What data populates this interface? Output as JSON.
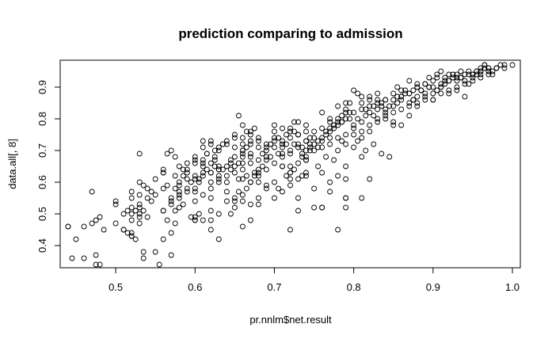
{
  "chart_data": {
    "type": "scatter",
    "title": "prediction comparing to admission",
    "xlabel": "pr.nnlm$net.result",
    "ylabel": "data.all[, 8]",
    "xlim": [
      0.43,
      1.01
    ],
    "ylim": [
      0.33,
      0.985
    ],
    "xticks": [
      "0.5",
      "0.6",
      "0.7",
      "0.8",
      "0.9",
      "1.0"
    ],
    "yticks": [
      "0.4",
      "0.5",
      "0.6",
      "0.7",
      "0.8",
      "0.9"
    ],
    "grid": false,
    "legend": "none",
    "marker": "open-circle",
    "x": [
      0.44,
      0.45,
      0.46,
      0.44,
      0.47,
      0.48,
      0.47,
      0.46,
      0.485,
      0.475,
      0.475,
      0.48,
      0.445,
      0.475,
      0.5,
      0.5,
      0.5,
      0.51,
      0.51,
      0.52,
      0.52,
      0.52,
      0.52,
      0.53,
      0.525,
      0.53,
      0.53,
      0.515,
      0.52,
      0.51,
      0.52,
      0.53,
      0.54,
      0.535,
      0.54,
      0.545,
      0.545,
      0.55,
      0.55,
      0.54,
      0.535,
      0.53,
      0.52,
      0.53,
      0.53,
      0.535,
      0.535,
      0.515,
      0.52,
      0.525,
      0.53,
      0.55,
      0.56,
      0.56,
      0.57,
      0.565,
      0.575,
      0.58,
      0.58,
      0.56,
      0.575,
      0.585,
      0.58,
      0.59,
      0.59,
      0.58,
      0.585,
      0.57,
      0.575,
      0.565,
      0.56,
      0.585,
      0.59,
      0.59,
      0.595,
      0.595,
      0.565,
      0.57,
      0.575,
      0.56,
      0.58,
      0.555,
      0.57,
      0.56,
      0.59,
      0.575,
      0.58,
      0.59,
      0.57,
      0.6,
      0.61,
      0.6,
      0.61,
      0.615,
      0.62,
      0.625,
      0.63,
      0.61,
      0.62,
      0.63,
      0.6,
      0.6,
      0.605,
      0.61,
      0.62,
      0.63,
      0.615,
      0.625,
      0.63,
      0.635,
      0.6,
      0.605,
      0.61,
      0.62,
      0.62,
      0.63,
      0.63,
      0.61,
      0.62,
      0.625,
      0.6,
      0.61,
      0.6,
      0.62,
      0.625,
      0.615,
      0.61,
      0.63,
      0.635,
      0.6,
      0.605,
      0.62,
      0.63,
      0.6,
      0.61,
      0.62,
      0.63,
      0.62,
      0.6,
      0.64,
      0.65,
      0.65,
      0.66,
      0.66,
      0.67,
      0.67,
      0.68,
      0.68,
      0.69,
      0.64,
      0.645,
      0.655,
      0.66,
      0.665,
      0.67,
      0.675,
      0.68,
      0.685,
      0.69,
      0.695,
      0.64,
      0.65,
      0.66,
      0.67,
      0.68,
      0.69,
      0.64,
      0.65,
      0.66,
      0.67,
      0.68,
      0.69,
      0.655,
      0.66,
      0.665,
      0.645,
      0.65,
      0.66,
      0.67,
      0.68,
      0.69,
      0.64,
      0.65,
      0.66,
      0.67,
      0.68,
      0.69,
      0.645,
      0.655,
      0.665,
      0.675,
      0.685,
      0.695,
      0.64,
      0.65,
      0.66,
      0.67,
      0.68,
      0.69,
      0.66,
      0.67,
      0.64,
      0.65,
      0.655,
      0.66,
      0.68,
      0.67,
      0.69,
      0.65,
      0.645,
      0.66,
      0.67,
      0.665,
      0.675,
      0.7,
      0.71,
      0.72,
      0.73,
      0.74,
      0.7,
      0.705,
      0.71,
      0.715,
      0.72,
      0.725,
      0.73,
      0.735,
      0.74,
      0.745,
      0.7,
      0.71,
      0.72,
      0.73,
      0.74,
      0.7,
      0.71,
      0.72,
      0.73,
      0.74,
      0.7,
      0.71,
      0.72,
      0.73,
      0.74,
      0.705,
      0.715,
      0.725,
      0.735,
      0.745,
      0.7,
      0.71,
      0.72,
      0.73,
      0.74,
      0.72,
      0.73,
      0.74,
      0.7,
      0.715,
      0.725,
      0.735,
      0.745,
      0.71,
      0.72,
      0.735,
      0.74,
      0.745,
      0.7,
      0.705,
      0.71,
      0.73,
      0.725,
      0.74,
      0.72,
      0.75,
      0.76,
      0.77,
      0.78,
      0.79,
      0.75,
      0.755,
      0.76,
      0.765,
      0.77,
      0.775,
      0.78,
      0.785,
      0.79,
      0.795,
      0.75,
      0.76,
      0.77,
      0.78,
      0.79,
      0.75,
      0.76,
      0.77,
      0.78,
      0.79,
      0.755,
      0.765,
      0.775,
      0.785,
      0.795,
      0.75,
      0.76,
      0.77,
      0.78,
      0.79,
      0.76,
      0.77,
      0.78,
      0.79,
      0.785,
      0.79,
      0.79,
      0.755,
      0.775,
      0.765,
      0.78,
      0.79,
      0.77,
      0.76,
      0.785,
      0.795,
      0.775,
      0.8,
      0.81,
      0.82,
      0.83,
      0.84,
      0.8,
      0.805,
      0.81,
      0.815,
      0.82,
      0.825,
      0.83,
      0.835,
      0.84,
      0.845,
      0.8,
      0.81,
      0.82,
      0.83,
      0.84,
      0.8,
      0.81,
      0.82,
      0.83,
      0.84,
      0.805,
      0.815,
      0.825,
      0.835,
      0.845,
      0.8,
      0.81,
      0.82,
      0.83,
      0.84,
      0.81,
      0.82,
      0.835,
      0.8,
      0.805,
      0.815,
      0.83,
      0.825,
      0.84,
      0.81,
      0.85,
      0.86,
      0.87,
      0.88,
      0.89,
      0.85,
      0.855,
      0.86,
      0.865,
      0.87,
      0.875,
      0.88,
      0.885,
      0.89,
      0.895,
      0.85,
      0.86,
      0.87,
      0.88,
      0.89,
      0.85,
      0.86,
      0.87,
      0.88,
      0.89,
      0.855,
      0.865,
      0.875,
      0.885,
      0.895,
      0.86,
      0.87,
      0.88,
      0.85,
      0.86,
      0.87,
      0.88,
      0.89,
      0.855,
      0.875,
      0.9,
      0.91,
      0.92,
      0.93,
      0.94,
      0.9,
      0.905,
      0.91,
      0.915,
      0.92,
      0.925,
      0.93,
      0.935,
      0.94,
      0.945,
      0.9,
      0.91,
      0.92,
      0.93,
      0.94,
      0.905,
      0.915,
      0.925,
      0.935,
      0.945,
      0.9,
      0.91,
      0.92,
      0.93,
      0.94,
      0.91,
      0.92,
      0.93,
      0.895,
      0.905,
      0.915,
      0.925,
      0.935,
      0.945,
      0.9,
      0.95,
      0.96,
      0.97,
      0.98,
      0.99,
      1.0,
      0.95,
      0.955,
      0.96,
      0.965,
      0.97,
      0.975,
      0.98,
      0.985,
      0.99,
      0.95,
      0.96,
      0.97,
      0.98,
      0.955,
      0.965,
      0.975,
      0.95,
      0.96,
      0.97,
      0.955,
      0.96,
      0.965,
      0.95,
      0.97,
      0.75,
      0.79,
      0.76,
      0.73,
      0.73,
      0.77,
      0.81,
      0.82,
      0.78,
      0.79,
      0.85,
      0.71,
      0.72,
      0.66,
      0.68,
      0.72,
      0.74,
      0.63,
      0.62,
      0.6,
      0.58,
      0.57,
      0.56
    ],
    "y": [
      0.46,
      0.42,
      0.46,
      0.46,
      0.47,
      0.49,
      0.57,
      0.36,
      0.45,
      0.48,
      0.37,
      0.34,
      0.36,
      0.34,
      0.47,
      0.53,
      0.54,
      0.45,
      0.5,
      0.52,
      0.5,
      0.44,
      0.43,
      0.47,
      0.42,
      0.49,
      0.56,
      0.51,
      0.57,
      0.45,
      0.55,
      0.6,
      0.58,
      0.59,
      0.55,
      0.54,
      0.57,
      0.56,
      0.61,
      0.49,
      0.51,
      0.69,
      0.43,
      0.53,
      0.52,
      0.38,
      0.36,
      0.44,
      0.48,
      0.51,
      0.5,
      0.38,
      0.64,
      0.63,
      0.7,
      0.69,
      0.68,
      0.65,
      0.6,
      0.58,
      0.62,
      0.62,
      0.55,
      0.58,
      0.61,
      0.57,
      0.64,
      0.54,
      0.51,
      0.48,
      0.42,
      0.53,
      0.64,
      0.57,
      0.6,
      0.49,
      0.59,
      0.44,
      0.47,
      0.51,
      0.56,
      0.34,
      0.55,
      0.63,
      0.63,
      0.58,
      0.59,
      0.66,
      0.37,
      0.67,
      0.66,
      0.68,
      0.65,
      0.69,
      0.66,
      0.7,
      0.7,
      0.62,
      0.63,
      0.64,
      0.58,
      0.61,
      0.6,
      0.63,
      0.6,
      0.62,
      0.64,
      0.67,
      0.71,
      0.72,
      0.48,
      0.5,
      0.56,
      0.55,
      0.58,
      0.6,
      0.64,
      0.71,
      0.72,
      0.68,
      0.57,
      0.48,
      0.54,
      0.51,
      0.65,
      0.69,
      0.73,
      0.65,
      0.64,
      0.66,
      0.61,
      0.63,
      0.61,
      0.62,
      0.67,
      0.73,
      0.42,
      0.45,
      0.49,
      0.72,
      0.71,
      0.68,
      0.68,
      0.7,
      0.72,
      0.69,
      0.71,
      0.74,
      0.72,
      0.65,
      0.67,
      0.66,
      0.64,
      0.62,
      0.6,
      0.63,
      0.67,
      0.69,
      0.7,
      0.72,
      0.57,
      0.54,
      0.56,
      0.6,
      0.62,
      0.64,
      0.73,
      0.75,
      0.74,
      0.76,
      0.73,
      0.71,
      0.81,
      0.78,
      0.76,
      0.5,
      0.52,
      0.46,
      0.48,
      0.55,
      0.58,
      0.6,
      0.63,
      0.66,
      0.68,
      0.64,
      0.67,
      0.64,
      0.61,
      0.58,
      0.62,
      0.65,
      0.68,
      0.62,
      0.65,
      0.7,
      0.66,
      0.63,
      0.59,
      0.72,
      0.75,
      0.54,
      0.55,
      0.57,
      0.61,
      0.6,
      0.73,
      0.68,
      0.74,
      0.66,
      0.69,
      0.53,
      0.71,
      0.77,
      0.71,
      0.72,
      0.74,
      0.75,
      0.76,
      0.76,
      0.74,
      0.73,
      0.75,
      0.77,
      0.79,
      0.72,
      0.68,
      0.7,
      0.71,
      0.66,
      0.68,
      0.69,
      0.71,
      0.73,
      0.78,
      0.77,
      0.76,
      0.79,
      0.78,
      0.6,
      0.65,
      0.63,
      0.66,
      0.67,
      0.58,
      0.62,
      0.64,
      0.69,
      0.72,
      0.55,
      0.57,
      0.59,
      0.61,
      0.63,
      0.7,
      0.75,
      0.73,
      0.74,
      0.72,
      0.76,
      0.71,
      0.74,
      0.65,
      0.65,
      0.62,
      0.67,
      0.7,
      0.73,
      0.69,
      0.71,
      0.75,
      0.72,
      0.68,
      0.45,
      0.76,
      0.77,
      0.79,
      0.8,
      0.82,
      0.74,
      0.71,
      0.73,
      0.75,
      0.77,
      0.78,
      0.79,
      0.81,
      0.83,
      0.82,
      0.72,
      0.74,
      0.76,
      0.78,
      0.8,
      0.7,
      0.71,
      0.72,
      0.74,
      0.75,
      0.73,
      0.76,
      0.77,
      0.79,
      0.8,
      0.58,
      0.52,
      0.6,
      0.62,
      0.65,
      0.82,
      0.8,
      0.84,
      0.85,
      0.73,
      0.55,
      0.61,
      0.65,
      0.67,
      0.68,
      0.7,
      0.72,
      0.74,
      0.63,
      0.79,
      0.85,
      0.78,
      0.82,
      0.83,
      0.84,
      0.85,
      0.86,
      0.78,
      0.8,
      0.79,
      0.81,
      0.82,
      0.84,
      0.83,
      0.85,
      0.86,
      0.84,
      0.77,
      0.76,
      0.78,
      0.8,
      0.82,
      0.75,
      0.74,
      0.76,
      0.79,
      0.81,
      0.73,
      0.7,
      0.72,
      0.69,
      0.68,
      0.71,
      0.87,
      0.86,
      0.88,
      0.83,
      0.85,
      0.87,
      0.84,
      0.89,
      0.88,
      0.83,
      0.86,
      0.81,
      0.8,
      0.68,
      0.86,
      0.87,
      0.88,
      0.9,
      0.91,
      0.84,
      0.85,
      0.87,
      0.89,
      0.88,
      0.86,
      0.9,
      0.89,
      0.91,
      0.9,
      0.82,
      0.83,
      0.85,
      0.87,
      0.88,
      0.79,
      0.78,
      0.81,
      0.84,
      0.86,
      0.87,
      0.88,
      0.86,
      0.89,
      0.9,
      0.89,
      0.92,
      0.91,
      0.88,
      0.86,
      0.84,
      0.85,
      0.87,
      0.9,
      0.89,
      0.9,
      0.91,
      0.92,
      0.93,
      0.94,
      0.88,
      0.89,
      0.9,
      0.91,
      0.92,
      0.93,
      0.94,
      0.93,
      0.92,
      0.91,
      0.86,
      0.88,
      0.89,
      0.9,
      0.91,
      0.93,
      0.92,
      0.94,
      0.95,
      0.94,
      0.92,
      0.9,
      0.88,
      0.89,
      0.87,
      0.95,
      0.94,
      0.92,
      0.93,
      0.94,
      0.93,
      0.94,
      0.93,
      0.95,
      0.86,
      0.94,
      0.95,
      0.96,
      0.96,
      0.97,
      0.97,
      0.94,
      0.95,
      0.96,
      0.97,
      0.96,
      0.95,
      0.96,
      0.97,
      0.96,
      0.94,
      0.94,
      0.95,
      0.96,
      0.95,
      0.96,
      0.94,
      0.93,
      0.93,
      0.95,
      0.94,
      0.95,
      0.97,
      0.92,
      0.94,
      0.52,
      0.52,
      0.52,
      0.55,
      0.51,
      0.57,
      0.55,
      0.61,
      0.45,
      0.55,
      0.78,
      0.69,
      0.63,
      0.54,
      0.53,
      0.61,
      0.62,
      0.5,
      0.48,
      0.48,
      0.52,
      0.53,
      0.51
    ]
  }
}
